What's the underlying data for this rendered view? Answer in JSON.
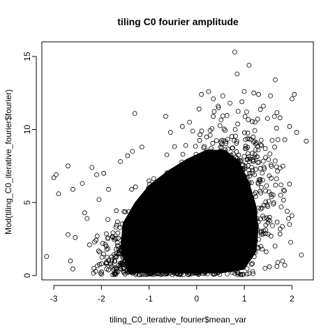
{
  "chart_data": {
    "type": "scatter",
    "title": "tiling C0 fourier amplitude",
    "xlabel": "tiling_C0_iterative_fourier$mean_var",
    "ylabel": "Mod(tiling_C0_iterative_fourier$fourier)",
    "xlim": [
      -3.25,
      2.45
    ],
    "ylim": [
      -0.3,
      16.0
    ],
    "x_ticks": [
      -3,
      -2,
      -1,
      0,
      1,
      2
    ],
    "y_ticks": [
      0,
      5,
      10,
      15
    ],
    "grid": false,
    "legend": "none",
    "marker": "open-circle",
    "marker_color": "#000000",
    "core_density": {
      "center_x": -0.15,
      "spread_x": 0.75,
      "spread_y": 2.6,
      "note_points": "dense cloud of overlapping points between x=-1.9..1.9, y=0..8.5"
    },
    "outliers": [
      {
        "x": -3.15,
        "y": 1.3
      },
      {
        "x": -3.0,
        "y": 6.7
      },
      {
        "x": -2.95,
        "y": 6.9
      },
      {
        "x": -2.9,
        "y": 5.6
      },
      {
        "x": -2.7,
        "y": 7.5
      },
      {
        "x": -2.7,
        "y": 2.8
      },
      {
        "x": -2.65,
        "y": 1.0
      },
      {
        "x": -2.6,
        "y": 0.45
      },
      {
        "x": -2.55,
        "y": 2.6
      },
      {
        "x": -2.6,
        "y": 5.9
      },
      {
        "x": -2.4,
        "y": 6.3
      },
      {
        "x": -2.35,
        "y": 4.3
      },
      {
        "x": -2.3,
        "y": 3.9
      },
      {
        "x": -2.25,
        "y": 2.1
      },
      {
        "x": -2.2,
        "y": 7.4
      },
      {
        "x": -2.1,
        "y": 6.9
      },
      {
        "x": -2.05,
        "y": 5.2
      },
      {
        "x": -1.95,
        "y": 7.0
      },
      {
        "x": -1.9,
        "y": 0.8
      },
      {
        "x": -1.85,
        "y": 5.9
      },
      {
        "x": -1.75,
        "y": 0.4
      },
      {
        "x": -1.6,
        "y": 7.8
      },
      {
        "x": -1.45,
        "y": 8.2
      },
      {
        "x": -1.35,
        "y": 8.5
      },
      {
        "x": -1.3,
        "y": 11.1
      },
      {
        "x": -1.15,
        "y": 8.8
      },
      {
        "x": -0.65,
        "y": 10.9
      },
      {
        "x": -0.55,
        "y": 9.8
      },
      {
        "x": -0.3,
        "y": 10.2
      },
      {
        "x": -0.15,
        "y": 10.5
      },
      {
        "x": 0.05,
        "y": 11.4
      },
      {
        "x": 0.1,
        "y": 12.4
      },
      {
        "x": 0.25,
        "y": 12.6
      },
      {
        "x": 0.35,
        "y": 12.1
      },
      {
        "x": 0.45,
        "y": 11.6
      },
      {
        "x": 0.55,
        "y": 12.3
      },
      {
        "x": 0.7,
        "y": 11.8
      },
      {
        "x": 0.8,
        "y": 15.3
      },
      {
        "x": 0.85,
        "y": 13.8
      },
      {
        "x": 0.95,
        "y": 11.9
      },
      {
        "x": 1.0,
        "y": 12.6
      },
      {
        "x": 1.05,
        "y": 11.2
      },
      {
        "x": 1.1,
        "y": 14.4
      },
      {
        "x": 1.2,
        "y": 12.5
      },
      {
        "x": 1.3,
        "y": 12.4
      },
      {
        "x": 1.4,
        "y": 11.6
      },
      {
        "x": 1.55,
        "y": 12.3
      },
      {
        "x": 1.65,
        "y": 13.4
      },
      {
        "x": 1.75,
        "y": 10.8
      },
      {
        "x": 1.85,
        "y": 9.3
      },
      {
        "x": 1.9,
        "y": 4.4
      },
      {
        "x": 1.95,
        "y": 10.2
      },
      {
        "x": 2.0,
        "y": 12.1
      },
      {
        "x": 2.05,
        "y": 12.4
      },
      {
        "x": 2.1,
        "y": 9.8
      },
      {
        "x": 2.2,
        "y": 1.4
      },
      {
        "x": 2.3,
        "y": 9.2
      },
      {
        "x": 1.95,
        "y": 3.5
      },
      {
        "x": 1.85,
        "y": 0.7
      },
      {
        "x": 2.0,
        "y": 4.1
      }
    ]
  }
}
